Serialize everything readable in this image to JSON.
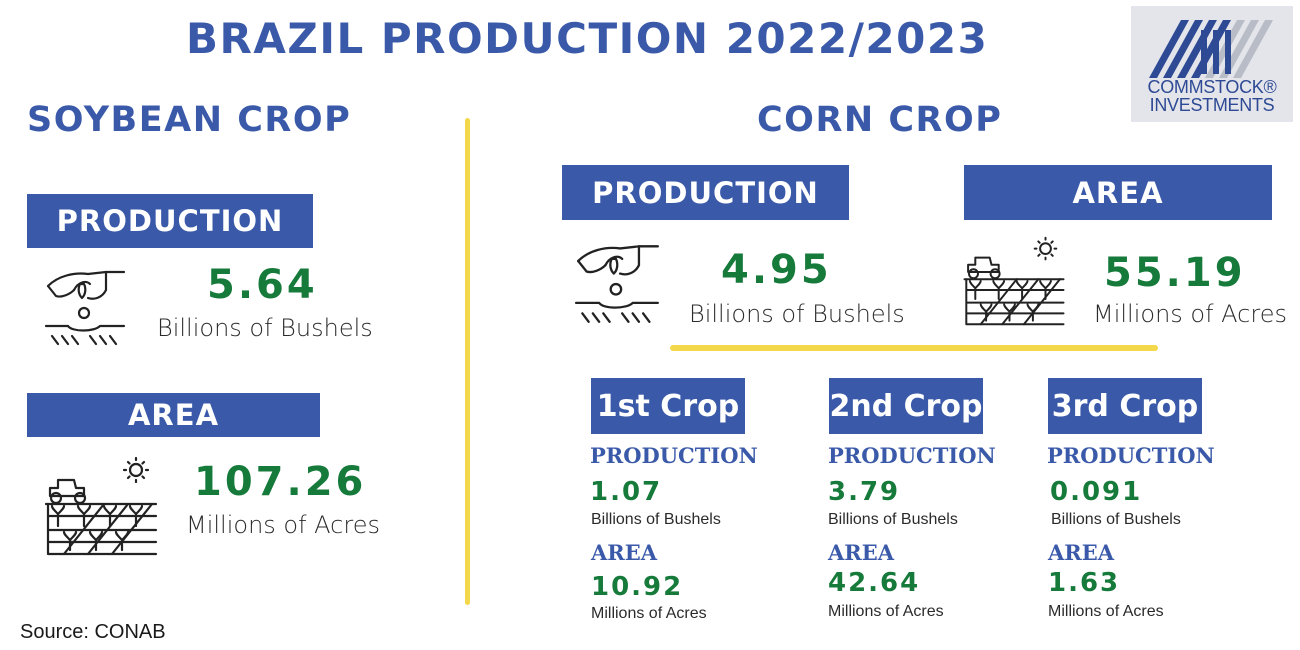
{
  "title": "BRAZIL PRODUCTION 2022/2023",
  "logo": {
    "line1": "COMMSTOCK®",
    "line2": "INVESTMENTS",
    "colors": {
      "background": "#e3e5ea",
      "stripes": "#2e4a95"
    }
  },
  "soybean": {
    "title": "SOYBEAN CROP",
    "production": {
      "label": "PRODUCTION",
      "value": "5.64",
      "unit": "Billions of Bushels",
      "icon": "hand-planting-seed-icon"
    },
    "area": {
      "label": "AREA",
      "value": "107.26",
      "unit": "Millions of Acres",
      "icon": "tractor-field-icon"
    }
  },
  "corn": {
    "title": "CORN CROP",
    "production": {
      "label": "PRODUCTION",
      "value": "4.95",
      "unit": "Billions of Bushels",
      "icon": "hand-planting-seed-icon"
    },
    "area": {
      "label": "AREA",
      "value": "55.19",
      "unit": "Millions of Acres",
      "icon": "tractor-field-icon"
    },
    "crops": [
      {
        "label": "1st Crop",
        "production_label": "PRODUCTION",
        "production_value": "1.07",
        "production_unit": "Billions of Bushels",
        "area_label": "AREA",
        "area_value": "10.92",
        "area_unit": "Millions of Acres"
      },
      {
        "label": "2nd Crop",
        "production_label": "PRODUCTION",
        "production_value": "3.79",
        "production_unit": "Billions of Bushels",
        "area_label": "AREA",
        "area_value": "42.64",
        "area_unit": "Millions of Acres"
      },
      {
        "label": "3rd Crop",
        "production_label": "PRODUCTION",
        "production_value": "0.091",
        "production_unit": "Billions of Bushels",
        "area_label": "AREA",
        "area_value": "1.63",
        "area_unit": "Millions of Acres"
      }
    ]
  },
  "source": "Source: CONAB",
  "colors": {
    "title_blue": "#3a5aa9",
    "box_blue": "#3a5aa9",
    "value_green": "#167a3b",
    "divider_yellow": "#f2d84a"
  }
}
